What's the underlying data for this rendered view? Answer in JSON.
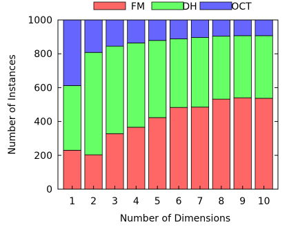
{
  "chart_data": {
    "type": "bar",
    "stacked": true,
    "categories": [
      "1",
      "2",
      "3",
      "4",
      "5",
      "6",
      "7",
      "8",
      "9",
      "10"
    ],
    "series": [
      {
        "name": "FM",
        "color": "#ff6666",
        "values": [
          230,
          203,
          328,
          366,
          423,
          483,
          485,
          532,
          540,
          537
        ]
      },
      {
        "name": "DH",
        "color": "#66ff66",
        "values": [
          382,
          605,
          517,
          498,
          456,
          405,
          411,
          372,
          367,
          370
        ]
      },
      {
        "name": "OCT",
        "color": "#6666ff",
        "values": [
          388,
          192,
          155,
          136,
          121,
          112,
          104,
          96,
          93,
          93
        ]
      }
    ],
    "xlabel": "Number of Dimensions",
    "ylabel": "Number of Instances",
    "ylim": [
      0,
      1000
    ],
    "yticks": [
      0,
      200,
      400,
      600,
      800,
      1000
    ],
    "legend_position": "top"
  }
}
